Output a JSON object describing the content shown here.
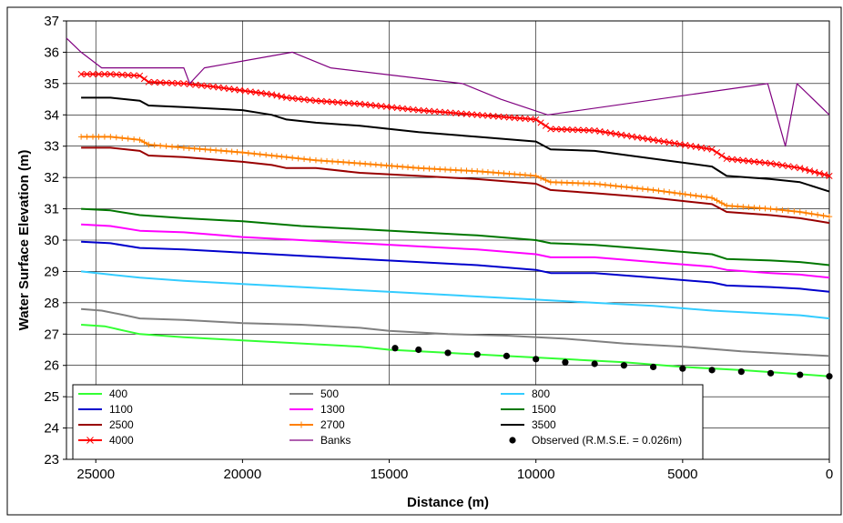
{
  "chart_data": {
    "type": "line",
    "title": "",
    "xlabel": "Distance (m)",
    "ylabel": "Water Surface Elevation (m)",
    "xlim": [
      26000,
      0
    ],
    "ylim": [
      23,
      37
    ],
    "x_reversed": true,
    "grid": "vertical-and-horizontal",
    "legend_placement": "bottom",
    "x_ticks": [
      25000,
      20000,
      15000,
      10000,
      5000,
      0
    ],
    "x_tick_labels": [
      "25000",
      "20000",
      "15000",
      "10000",
      "5000",
      "0"
    ],
    "y_ticks": [
      23,
      24,
      25,
      26,
      27,
      28,
      29,
      30,
      31,
      32,
      33,
      34,
      35,
      36,
      37
    ],
    "y_tick_labels": [
      "23",
      "24",
      "25",
      "26",
      "27",
      "28",
      "29",
      "30",
      "31",
      "32",
      "33",
      "34",
      "35",
      "36",
      "37"
    ],
    "series": [
      {
        "name": "400",
        "color": "#33ff33",
        "marker": "none",
        "x": [
          25500,
          24700,
          24000,
          23500,
          22000,
          20000,
          18000,
          16000,
          15000,
          13000,
          11000,
          9000,
          7000,
          5000,
          3000,
          1000,
          0
        ],
        "y": [
          27.3,
          27.25,
          27.1,
          27.0,
          26.9,
          26.8,
          26.7,
          26.6,
          26.5,
          26.4,
          26.3,
          26.2,
          26.1,
          25.95,
          25.85,
          25.72,
          25.65
        ]
      },
      {
        "name": "500",
        "color": "#808080",
        "marker": "none",
        "x": [
          25500,
          24800,
          24000,
          23500,
          22000,
          20000,
          18000,
          16000,
          15000,
          13000,
          11000,
          9000,
          7000,
          5000,
          3000,
          1000,
          0
        ],
        "y": [
          27.8,
          27.75,
          27.6,
          27.5,
          27.45,
          27.35,
          27.3,
          27.2,
          27.1,
          27.0,
          26.95,
          26.85,
          26.7,
          26.6,
          26.45,
          26.35,
          26.3
        ]
      },
      {
        "name": "800",
        "color": "#33ccff",
        "marker": "none",
        "x": [
          25500,
          24500,
          23500,
          22000,
          20000,
          18000,
          16000,
          14000,
          12000,
          10000,
          8000,
          6000,
          4000,
          2000,
          1000,
          0
        ],
        "y": [
          29.0,
          28.9,
          28.8,
          28.7,
          28.6,
          28.5,
          28.4,
          28.3,
          28.2,
          28.1,
          28.0,
          27.9,
          27.75,
          27.65,
          27.6,
          27.5
        ]
      },
      {
        "name": "1100",
        "color": "#0000cc",
        "marker": "none",
        "x": [
          25500,
          24500,
          23500,
          22000,
          20000,
          18000,
          16000,
          14000,
          12000,
          10000,
          9500,
          8000,
          6000,
          4000,
          3500,
          2000,
          1000,
          0
        ],
        "y": [
          29.95,
          29.9,
          29.75,
          29.7,
          29.6,
          29.5,
          29.4,
          29.3,
          29.2,
          29.05,
          28.95,
          28.95,
          28.8,
          28.65,
          28.55,
          28.5,
          28.45,
          28.35
        ]
      },
      {
        "name": "1300",
        "color": "#ff00ff",
        "marker": "none",
        "x": [
          25500,
          24500,
          23500,
          22000,
          20000,
          18000,
          16000,
          14000,
          12000,
          10000,
          9500,
          8000,
          6000,
          4000,
          3500,
          2000,
          1000,
          0
        ],
        "y": [
          30.5,
          30.45,
          30.3,
          30.25,
          30.1,
          30.0,
          29.9,
          29.8,
          29.7,
          29.55,
          29.45,
          29.45,
          29.3,
          29.15,
          29.05,
          28.95,
          28.9,
          28.8
        ]
      },
      {
        "name": "1500",
        "color": "#007700",
        "marker": "none",
        "x": [
          25500,
          24500,
          23500,
          22000,
          20000,
          18000,
          16000,
          14000,
          12000,
          10000,
          9500,
          8000,
          6000,
          4000,
          3500,
          2000,
          1000,
          0
        ],
        "y": [
          31.0,
          30.95,
          30.8,
          30.7,
          30.6,
          30.45,
          30.35,
          30.25,
          30.15,
          30.0,
          29.9,
          29.85,
          29.7,
          29.55,
          29.4,
          29.35,
          29.3,
          29.2
        ]
      },
      {
        "name": "2500",
        "color": "#990000",
        "marker": "none",
        "x": [
          25500,
          24500,
          23500,
          23200,
          22000,
          20000,
          19000,
          18500,
          17500,
          16000,
          14000,
          12000,
          10000,
          9500,
          8000,
          6000,
          4000,
          3500,
          2000,
          1000,
          0
        ],
        "y": [
          32.95,
          32.95,
          32.85,
          32.7,
          32.65,
          32.5,
          32.4,
          32.3,
          32.3,
          32.15,
          32.05,
          31.95,
          31.8,
          31.6,
          31.5,
          31.35,
          31.15,
          30.9,
          30.8,
          30.7,
          30.55
        ]
      },
      {
        "name": "2700",
        "color": "#ff8000",
        "marker": "plus",
        "x": [
          25500,
          24500,
          23500,
          23200,
          22000,
          20000,
          19000,
          18500,
          17500,
          16000,
          14000,
          12000,
          10000,
          9500,
          8000,
          6000,
          4000,
          3500,
          2000,
          1000,
          0
        ],
        "y": [
          33.3,
          33.3,
          33.2,
          33.05,
          32.95,
          32.8,
          32.7,
          32.65,
          32.55,
          32.45,
          32.3,
          32.2,
          32.05,
          31.85,
          31.8,
          31.6,
          31.35,
          31.1,
          31.0,
          30.9,
          30.75
        ]
      },
      {
        "name": "3500",
        "color": "#000000",
        "marker": "none",
        "x": [
          25500,
          24500,
          23500,
          23200,
          22000,
          20000,
          19000,
          18500,
          17500,
          16000,
          14000,
          12000,
          10000,
          9500,
          8000,
          6000,
          4000,
          3500,
          2000,
          1000,
          0
        ],
        "y": [
          34.55,
          34.55,
          34.45,
          34.3,
          34.25,
          34.15,
          34.0,
          33.85,
          33.75,
          33.65,
          33.45,
          33.3,
          33.15,
          32.9,
          32.85,
          32.6,
          32.35,
          32.05,
          31.95,
          31.85,
          31.55
        ]
      },
      {
        "name": "4000",
        "color": "#ff0000",
        "marker": "cross",
        "x": [
          25500,
          24500,
          23500,
          23200,
          22000,
          21000,
          19000,
          18500,
          17500,
          16000,
          14000,
          12000,
          10000,
          9500,
          8000,
          6000,
          4000,
          3500,
          2000,
          1000,
          0
        ],
        "y": [
          35.3,
          35.3,
          35.25,
          35.05,
          35.0,
          34.9,
          34.65,
          34.55,
          34.45,
          34.35,
          34.15,
          34.0,
          33.85,
          33.55,
          33.5,
          33.2,
          32.9,
          32.6,
          32.45,
          32.3,
          32.05
        ]
      },
      {
        "name": "Banks",
        "color": "#800080",
        "marker": "none",
        "x": [
          26000,
          25500,
          24800,
          22000,
          21800,
          21300,
          18300,
          17000,
          12500,
          11200,
          9600,
          2100,
          1500,
          1100,
          0
        ],
        "y": [
          36.45,
          36.0,
          35.5,
          35.5,
          35.0,
          35.5,
          36.0,
          35.5,
          35.0,
          34.5,
          34.0,
          35.0,
          33.0,
          35.0,
          34.0
        ]
      },
      {
        "name": "Observed (R.M.S.E. = 0.026m)",
        "color": "#000000",
        "marker": "dot",
        "line": false,
        "x": [
          14800,
          14000,
          13000,
          12000,
          11000,
          10000,
          9000,
          8000,
          7000,
          6000,
          5000,
          4000,
          3000,
          2000,
          1000,
          0
        ],
        "y": [
          26.55,
          26.5,
          26.4,
          26.35,
          26.3,
          26.2,
          26.1,
          26.05,
          26.0,
          25.95,
          25.9,
          25.85,
          25.8,
          25.75,
          25.7,
          25.65
        ]
      }
    ]
  }
}
